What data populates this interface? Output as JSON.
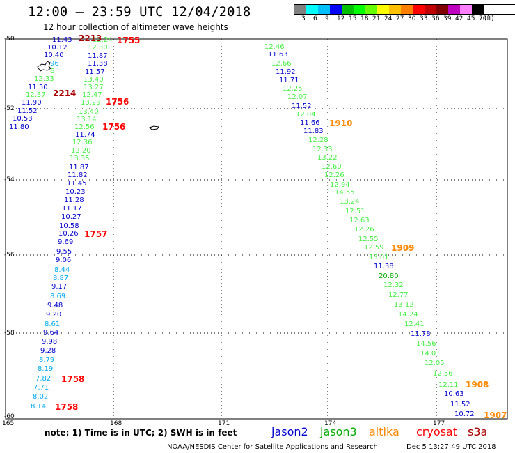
{
  "header": {
    "title": "12:00 – 23:59 UTC 12/04/2018",
    "subtitle": "12 hour collection of altimeter wave heights"
  },
  "legend": {
    "colors": [
      "#808080",
      "#00ffff",
      "#00bfff",
      "#0000ff",
      "#00c000",
      "#00ff00",
      "#66ff00",
      "#ffff00",
      "#ffc000",
      "#ff8000",
      "#ff0000",
      "#c00000",
      "#800000",
      "#c000c0",
      "#ff80ff",
      "#000000"
    ],
    "labels": [
      "3",
      "6",
      "9",
      "12",
      "15",
      "18",
      "21",
      "24",
      "27",
      "30",
      "33",
      "36",
      "39",
      "42",
      "45",
      "70",
      "(ft)"
    ]
  },
  "axes": {
    "y_labels": [
      "-50",
      "-52",
      "-54",
      "-56",
      "-58",
      "-60"
    ],
    "x_labels": [
      "165",
      "168",
      "171",
      "174",
      "177"
    ]
  },
  "colors": {
    "jason2": "#0000cc",
    "jason3": "#00aa00",
    "jason3_light": "#44ee44",
    "altika": "#ff8800",
    "cryosat": "#ff0000",
    "s3a": "#aa0000",
    "cyan": "#00aaee",
    "grid": "#000000"
  },
  "tracks": {
    "left": [
      {
        "t": "11.43",
        "c": "jason2"
      },
      {
        "t": "12.24",
        "c": "jason3_light"
      },
      {
        "t": "10.12",
        "c": "jason2"
      },
      {
        "t": "12.30",
        "c": "jason3_light"
      },
      {
        "t": "10.40",
        "c": "jason2"
      },
      {
        "t": "11.87",
        "c": "jason2"
      },
      {
        "t": "96",
        "c": "cyan"
      },
      {
        "t": "11.38",
        "c": "jason2"
      },
      {
        "t": "6",
        "c": "jason3_light"
      },
      {
        "t": "11.57",
        "c": "jason2"
      },
      {
        "t": "12.33",
        "c": "jason3_light"
      },
      {
        "t": "13.40",
        "c": "jason3_light"
      },
      {
        "t": "11.50",
        "c": "jason2"
      },
      {
        "t": "13.27",
        "c": "jason3_light"
      },
      {
        "t": "12.37",
        "c": "jason3_light"
      },
      {
        "t": "12.47",
        "c": "jason3_light"
      },
      {
        "t": "11.90",
        "c": "jason2"
      },
      {
        "t": "13.29",
        "c": "jason3_light"
      },
      {
        "t": "11.52",
        "c": "jason2"
      },
      {
        "t": "13.40",
        "c": "jason3_light"
      },
      {
        "t": "10.53",
        "c": "jason2"
      },
      {
        "t": "13.14",
        "c": "jason3_light"
      },
      {
        "t": "11.80",
        "c": "jason2"
      },
      {
        "t": "12.56",
        "c": "jason3_light"
      },
      {
        "t": "11.74",
        "c": "jason2"
      },
      {
        "t": "12.36",
        "c": "jason3_light"
      },
      {
        "t": "12.20",
        "c": "jason3_light"
      },
      {
        "t": "13.35",
        "c": "jason3_light"
      },
      {
        "t": "11.87",
        "c": "jason2"
      },
      {
        "t": "11.82",
        "c": "jason2"
      },
      {
        "t": "11.45",
        "c": "jason2"
      },
      {
        "t": "10.23",
        "c": "jason2"
      },
      {
        "t": "11.28",
        "c": "jason2"
      },
      {
        "t": "11.17",
        "c": "jason2"
      },
      {
        "t": "10.27",
        "c": "jason2"
      },
      {
        "t": "10.58",
        "c": "jason2"
      },
      {
        "t": "10.26",
        "c": "jason2"
      },
      {
        "t": "9.69",
        "c": "jason2"
      },
      {
        "t": "9.55",
        "c": "jason2"
      },
      {
        "t": "9.06",
        "c": "jason2"
      },
      {
        "t": "8.44",
        "c": "cyan"
      },
      {
        "t": "8.87",
        "c": "cyan"
      },
      {
        "t": "9.17",
        "c": "jason2"
      },
      {
        "t": "8.69",
        "c": "cyan"
      },
      {
        "t": "9.48",
        "c": "jason2"
      },
      {
        "t": "9.20",
        "c": "jason2"
      },
      {
        "t": "8.61",
        "c": "cyan"
      },
      {
        "t": "9.64",
        "c": "jason2"
      },
      {
        "t": "9.98",
        "c": "jason2"
      },
      {
        "t": "9.28",
        "c": "jason2"
      },
      {
        "t": "8.79",
        "c": "cyan"
      },
      {
        "t": "8.19",
        "c": "cyan"
      },
      {
        "t": "7.82",
        "c": "cyan"
      },
      {
        "t": "7.71",
        "c": "cyan"
      },
      {
        "t": "8.02",
        "c": "cyan"
      },
      {
        "t": "8.14",
        "c": "cyan"
      }
    ],
    "right": [
      {
        "t": "12.46",
        "c": "jason3_light"
      },
      {
        "t": "11.63",
        "c": "jason2"
      },
      {
        "t": "12.66",
        "c": "jason3_light"
      },
      {
        "t": "11.92",
        "c": "jason2"
      },
      {
        "t": "11.71",
        "c": "jason2"
      },
      {
        "t": "12.25",
        "c": "jason3_light"
      },
      {
        "t": "12.07",
        "c": "jason3_light"
      },
      {
        "t": "11.52",
        "c": "jason2"
      },
      {
        "t": "12.04",
        "c": "jason3_light"
      },
      {
        "t": "11.66",
        "c": "jason2"
      },
      {
        "t": "11.83",
        "c": "jason2"
      },
      {
        "t": "12.28",
        "c": "jason3_light"
      },
      {
        "t": "12.33",
        "c": "jason3_light"
      },
      {
        "t": "13.22",
        "c": "jason3_light"
      },
      {
        "t": "12.60",
        "c": "jason3_light"
      },
      {
        "t": "12.26",
        "c": "jason3_light"
      },
      {
        "t": "12.94",
        "c": "jason3_light"
      },
      {
        "t": "14.55",
        "c": "jason3_light"
      },
      {
        "t": "13.24",
        "c": "jason3_light"
      },
      {
        "t": "12.51",
        "c": "jason3_light"
      },
      {
        "t": "12.63",
        "c": "jason3_light"
      },
      {
        "t": "12.26",
        "c": "jason3_light"
      },
      {
        "t": "12.55",
        "c": "jason3_light"
      },
      {
        "t": "12.59",
        "c": "jason3_light"
      },
      {
        "t": "13.01",
        "c": "jason3_light"
      },
      {
        "t": "11.38",
        "c": "jason2"
      },
      {
        "t": "20.80",
        "c": "jason3"
      },
      {
        "t": "12.32",
        "c": "jason3_light"
      },
      {
        "t": "12.77",
        "c": "jason3_light"
      },
      {
        "t": "13.12",
        "c": "jason3_light"
      },
      {
        "t": "14.24",
        "c": "jason3_light"
      },
      {
        "t": "12.41",
        "c": "jason3_light"
      },
      {
        "t": "11.78",
        "c": "jason2"
      },
      {
        "t": "14.56",
        "c": "jason3_light"
      },
      {
        "t": "14.01",
        "c": "jason3_light"
      },
      {
        "t": "12.05",
        "c": "jason3_light"
      },
      {
        "t": "12.56",
        "c": "jason3_light"
      },
      {
        "t": "12.11",
        "c": "jason3_light"
      },
      {
        "t": "10.63",
        "c": "jason2"
      },
      {
        "t": "11.52",
        "c": "jason2"
      },
      {
        "t": "10.72",
        "c": "jason2"
      }
    ]
  },
  "pass_times": [
    {
      "t": "2213",
      "c": "s3a"
    },
    {
      "t": "1755",
      "c": "cryosat"
    },
    {
      "t": "2214",
      "c": "s3a"
    },
    {
      "t": "1756",
      "c": "cryosat"
    },
    {
      "t": "1756",
      "c": "cryosat"
    },
    {
      "t": "1757",
      "c": "cryosat"
    },
    {
      "t": "1758",
      "c": "cryosat"
    },
    {
      "t": "1758",
      "c": "cryosat"
    },
    {
      "t": "1910",
      "c": "altika"
    },
    {
      "t": "1909",
      "c": "altika"
    },
    {
      "t": "1908",
      "c": "altika"
    },
    {
      "t": "1907",
      "c": "altika"
    }
  ],
  "bottom": {
    "note": "note: 1) Time is in UTC; 2) SWH is in feet",
    "satellites": [
      {
        "name": "jason2",
        "c": "jason2"
      },
      {
        "name": "jason3",
        "c": "jason3"
      },
      {
        "name": "altika",
        "c": "altika"
      },
      {
        "name": "cryosat",
        "c": "cryosat"
      },
      {
        "name": "s3a",
        "c": "s3a"
      }
    ],
    "credit": "NOAA/NESDIS Center for Satellite Applications and Research",
    "timestamp": "Dec  5 13:27:49 UTC 2018"
  }
}
